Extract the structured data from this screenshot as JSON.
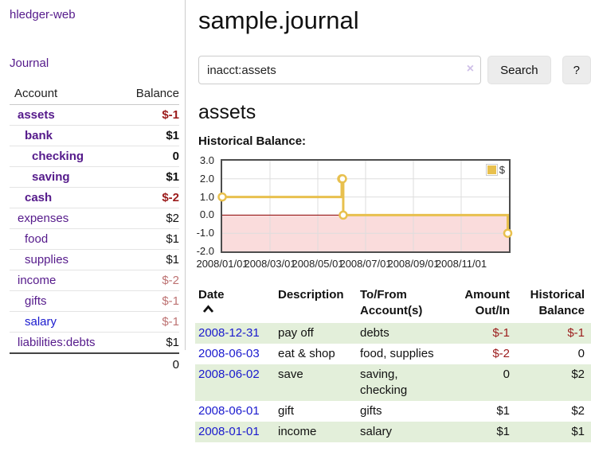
{
  "app": {
    "brand": "hledger-web"
  },
  "sidebar": {
    "journal_link": "Journal",
    "accounts_table": {
      "col_account": "Account",
      "col_balance": "Balance",
      "rows": [
        {
          "name": "assets",
          "depth": 1,
          "balance": "$-1",
          "bold": true,
          "balance_style": "neg"
        },
        {
          "name": "bank",
          "depth": 2,
          "balance": "$1",
          "bold": true,
          "balance_style": "pos"
        },
        {
          "name": "checking",
          "depth": 3,
          "balance": "0",
          "bold": true,
          "balance_style": "pos"
        },
        {
          "name": "saving",
          "depth": 3,
          "balance": "$1",
          "bold": true,
          "balance_style": "pos"
        },
        {
          "name": "cash",
          "depth": 2,
          "balance": "$-2",
          "bold": true,
          "balance_style": "neg"
        },
        {
          "name": "expenses",
          "depth": 1,
          "balance": "$2",
          "bold": false,
          "balance_style": "pos"
        },
        {
          "name": "food",
          "depth": 2,
          "balance": "$1",
          "bold": false,
          "balance_style": "pos"
        },
        {
          "name": "supplies",
          "depth": 2,
          "balance": "$1",
          "bold": false,
          "balance_style": "pos"
        },
        {
          "name": "income",
          "depth": 1,
          "balance": "$-2",
          "bold": false,
          "balance_style": "neg-light"
        },
        {
          "name": "gifts",
          "depth": 2,
          "balance": "$-1",
          "bold": false,
          "balance_style": "neg-light"
        },
        {
          "name": "salary",
          "depth": 2,
          "balance": "$-1",
          "bold": false,
          "balance_style": "neg-light",
          "link_style": "blue"
        },
        {
          "name": "liabilities:debts",
          "depth": 1,
          "balance": "$1",
          "bold": false,
          "balance_style": "pos"
        }
      ],
      "total": "0"
    }
  },
  "header": {
    "title": "sample.journal"
  },
  "search": {
    "query": "inacct:assets",
    "clear_label": "×",
    "search_button": "Search",
    "help_button": "?"
  },
  "account_page": {
    "title": "assets",
    "chart_heading": "Historical Balance:"
  },
  "chart_data": {
    "type": "line",
    "title": "Historical Balance:",
    "line_style": "step-after",
    "x_range": [
      "2008-01-01",
      "2009-01-01"
    ],
    "ylim": [
      -2,
      3
    ],
    "y_ticks": [
      3.0,
      2.0,
      1.0,
      0.0,
      -1.0,
      -2.0
    ],
    "y_tick_labels": [
      "3.0",
      "2.0",
      "1.0",
      "0.0",
      "-1.0",
      "-2.0"
    ],
    "x_ticks": [
      {
        "date": "2008-01-01",
        "label": "2008/01/01"
      },
      {
        "date": "2008-03-01",
        "label": "2008/03/01"
      },
      {
        "date": "2008-05-01",
        "label": "2008/05/01"
      },
      {
        "date": "2008-07-01",
        "label": "2008/07/01"
      },
      {
        "date": "2008-09-01",
        "label": "2008/09/01"
      },
      {
        "date": "2008-11-01",
        "label": "2008/11/01"
      }
    ],
    "series": [
      {
        "name": "$",
        "color": "#e8c04e",
        "points": [
          {
            "date": "2008-01-01",
            "value": 1
          },
          {
            "date": "2008-06-01",
            "value": 2
          },
          {
            "date": "2008-06-02",
            "value": 2
          },
          {
            "date": "2008-06-03",
            "value": 0
          },
          {
            "date": "2008-12-31",
            "value": -1
          }
        ]
      }
    ],
    "grid": true,
    "legend_position": "top-right",
    "gridline_color": "#dddddd",
    "zero_line_color": "#8b0000",
    "below_zero_fill": "#fadcdc"
  },
  "register": {
    "columns": {
      "date": "Date",
      "description": "Description",
      "accounts_line1": "To/From",
      "accounts_line2": "Account(s)",
      "amount_line1": "Amount",
      "amount_line2": "Out/In",
      "balance_line1": "Historical",
      "balance_line2": "Balance"
    },
    "sort": "ascending",
    "rows": [
      {
        "date": "2008-12-31",
        "description": "pay off",
        "accounts": "debts",
        "amount": "$-1",
        "amount_neg": true,
        "balance": "$-1",
        "balance_neg": true
      },
      {
        "date": "2008-06-03",
        "description": "eat & shop",
        "accounts": "food, supplies",
        "amount": "$-2",
        "amount_neg": true,
        "balance": "0",
        "balance_neg": false
      },
      {
        "date": "2008-06-02",
        "description": "save",
        "accounts": "saving, checking",
        "amount": "0",
        "amount_neg": false,
        "balance": "$2",
        "balance_neg": false
      },
      {
        "date": "2008-06-01",
        "description": "gift",
        "accounts": "gifts",
        "amount": "$1",
        "amount_neg": false,
        "balance": "$2",
        "balance_neg": false
      },
      {
        "date": "2008-01-01",
        "description": "income",
        "accounts": "salary",
        "amount": "$1",
        "amount_neg": false,
        "balance": "$1",
        "balance_neg": false
      }
    ]
  }
}
